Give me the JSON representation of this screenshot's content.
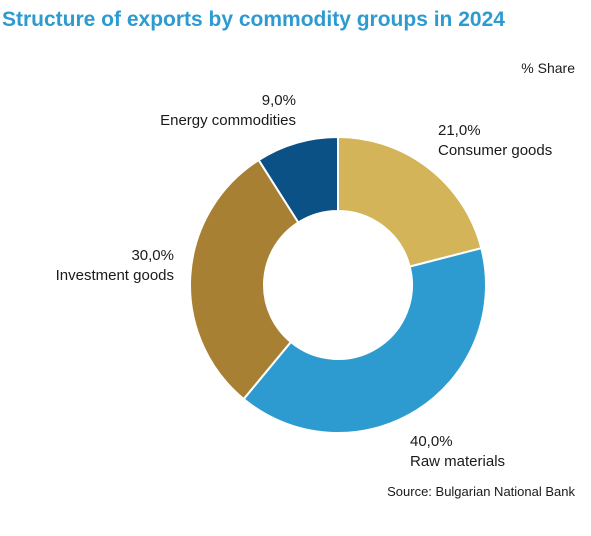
{
  "chart_data": {
    "type": "pie",
    "title": "Structure of exports by commodity groups in 2024",
    "unit_label": "% Share",
    "source": "Source: Bulgarian National Bank",
    "slices": [
      {
        "name": "Consumer goods",
        "value": 21.0,
        "label": "21,0%",
        "color": "#d4b458"
      },
      {
        "name": "Raw materials",
        "value": 40.0,
        "label": "40,0%",
        "color": "#2e9bd0"
      },
      {
        "name": "Investment goods",
        "value": 30.0,
        "label": "30,0%",
        "color": "#a88033"
      },
      {
        "name": "Energy commodities",
        "value": 9.0,
        "label": "9,0%",
        "color": "#0c5185"
      }
    ],
    "hole": "donut"
  }
}
